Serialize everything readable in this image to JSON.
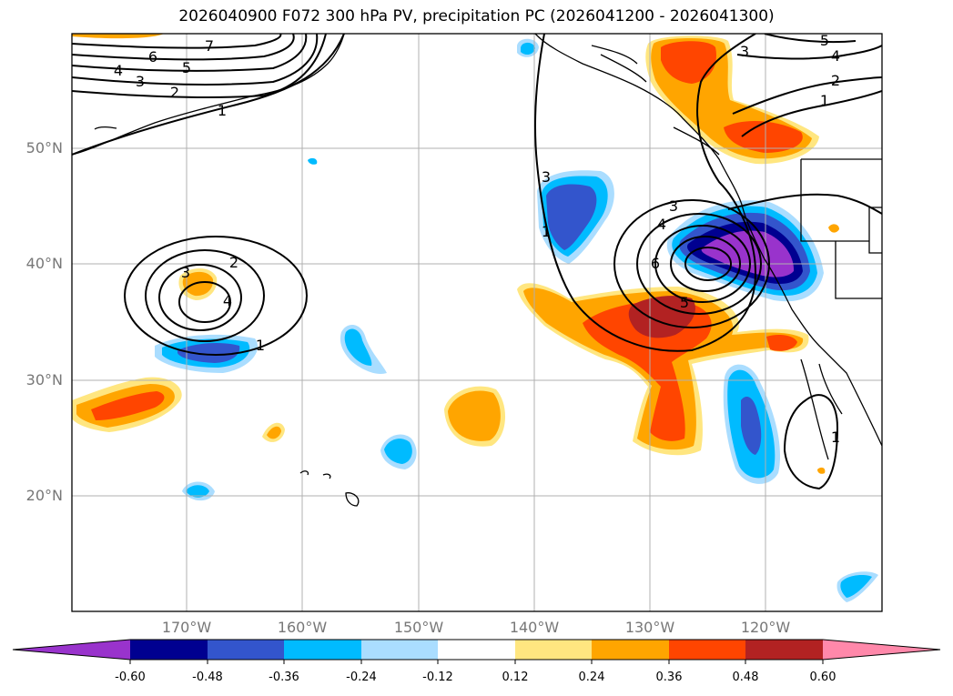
{
  "title": "2026040900 F072 300 hPa PV, precipitation PC (2026041200 - 2026041300)",
  "map": {
    "lat_labels": [
      "50°N",
      "40°N",
      "30°N",
      "20°N"
    ],
    "lon_labels": [
      "170°W",
      "160°W",
      "150°W",
      "140°W",
      "130°W",
      "120°W"
    ],
    "lon_range": [
      -180,
      -110
    ],
    "lat_range": [
      10,
      60
    ],
    "pv_contour_labels": [
      "7",
      "6",
      "5",
      "4",
      "3",
      "2",
      "1",
      "3",
      "2",
      "4",
      "1",
      "3",
      "4",
      "6",
      "5",
      "1",
      "5",
      "4",
      "3",
      "2",
      "1",
      "3",
      "1",
      "1"
    ]
  },
  "colorbar": {
    "ticks": [
      "-0.60",
      "-0.48",
      "-0.36",
      "-0.24",
      "-0.12",
      "0.12",
      "0.24",
      "0.36",
      "0.48",
      "0.60"
    ],
    "colors": [
      "#9933cc",
      "#000090",
      "#3355cc",
      "#00bbff",
      "#aaddff",
      "#ffffff",
      "#ffe680",
      "#ffa500",
      "#ff4500",
      "#b22222",
      "#ff88aa"
    ],
    "under_color": "#9933cc",
    "over_color": "#ff88aa"
  }
}
